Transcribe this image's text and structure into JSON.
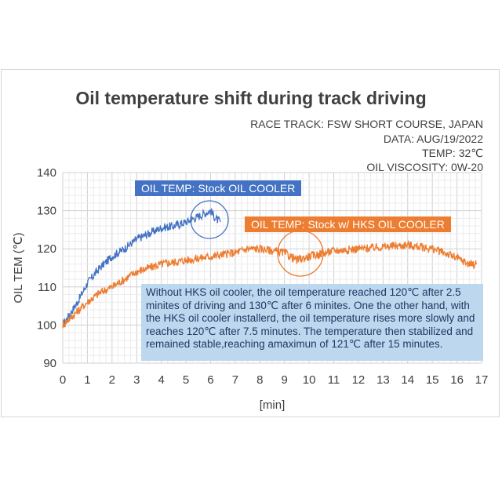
{
  "chart_data": {
    "type": "line",
    "title": "Oil temperature shift during track driving",
    "meta_lines": [
      "RACE TRACK: FSW SHORT COURSE, JAPAN",
      "DATA: AUG/19/2022",
      "TEMP: 32℃",
      "OIL VISCOSITY: 0W-20"
    ],
    "xlabel": "[min]",
    "ylabel": "OIL TEM (℃)",
    "xlim": [
      0,
      17
    ],
    "ylim": [
      90,
      140
    ],
    "xticks": [
      "0",
      "1",
      "2",
      "3",
      "4",
      "5",
      "6",
      "7",
      "8",
      "9",
      "10",
      "11",
      "12",
      "13",
      "14",
      "15",
      "16",
      "17"
    ],
    "yticks": [
      "90",
      "100",
      "110",
      "120",
      "130",
      "140"
    ],
    "grid": true,
    "series": [
      {
        "name": "OIL TEMP: Stock OIL COOLER",
        "color": "#4472c4",
        "x": [
          0,
          0.3,
          0.6,
          1.0,
          1.5,
          2.0,
          2.5,
          3.0,
          3.5,
          4.0,
          4.5,
          5.0,
          5.5,
          6.0,
          6.2,
          6.4
        ],
        "y": [
          100,
          103,
          106,
          111,
          115,
          118,
          120,
          122.5,
          124,
          125.5,
          126,
          127,
          128.5,
          130,
          128,
          127
        ]
      },
      {
        "name": "OIL TEMP: Stock w/ HKS OIL COOLER",
        "color": "#ed7d31",
        "x": [
          0,
          0.5,
          1.0,
          1.5,
          2.0,
          2.5,
          3.0,
          3.5,
          4.0,
          4.5,
          5.0,
          6.0,
          7.0,
          7.5,
          8.0,
          9.0,
          9.5,
          10.0,
          11.0,
          12.0,
          13.0,
          14.0,
          15.0,
          15.5,
          16.0,
          16.5,
          16.8
        ],
        "y": [
          100,
          103,
          106,
          108.5,
          110,
          112,
          114,
          115,
          116,
          116.5,
          117,
          118,
          119,
          120,
          120,
          119,
          117,
          118,
          119.5,
          120,
          120.5,
          121,
          120,
          119,
          117.5,
          116,
          116
        ]
      }
    ],
    "annotation": "Without HKS oil cooler, the oil temperature reached 120℃ after 2.5 minites of driving and 130℃ after 6 minites. One the other hand, with the HKS oil cooler installerd, the oil temperature rises more slowly and reaches 120℃ after 7.5 minutes. The temperature then stabilized and remained stable,reaching amaximun of 121℃ after 15 minutes."
  }
}
